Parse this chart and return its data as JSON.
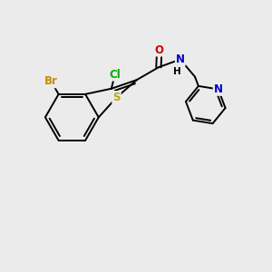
{
  "background_color": "#ebebeb",
  "bond_color": "#000000",
  "atom_colors": {
    "Br": "#cc8800",
    "Cl": "#00aa00",
    "S": "#bbaa00",
    "N": "#0000cc",
    "O": "#cc0000",
    "H": "#000000",
    "C": "#000000"
  },
  "font_size_atoms": 8.5,
  "line_width": 1.4
}
